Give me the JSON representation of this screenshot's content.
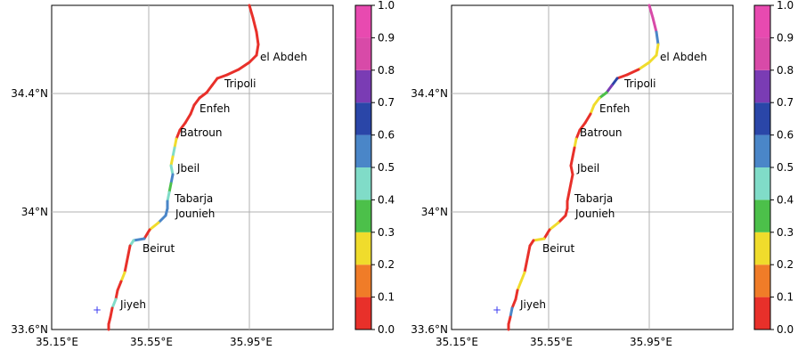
{
  "colorbar": {
    "colors": [
      "#e8302a",
      "#f07c28",
      "#f0dc2c",
      "#4cc04a",
      "#80dcc8",
      "#4a86c8",
      "#2a46a8",
      "#7a3cb4",
      "#d84aa8",
      "#e84ab0"
    ],
    "labels": [
      "0.0",
      "0.1",
      "0.2",
      "0.3",
      "0.4",
      "0.5",
      "0.6",
      "0.7",
      "0.8",
      "0.9",
      "1.0"
    ]
  },
  "axes": {
    "y_ticks": [
      "33.6°N",
      "34°N",
      "34.4°N"
    ],
    "x_ticks": [
      "35.15°E",
      "35.55°E",
      "35.95°E"
    ]
  },
  "places": [
    "el Abdeh",
    "Tripoli",
    "Enfeh",
    "Batroun",
    "Jbeil",
    "Tabarja",
    "Jounieh",
    "Beirut",
    "Jiyeh"
  ],
  "marker": "+",
  "panels": [
    {
      "name": "left",
      "segment_values": [
        0.0,
        0.0,
        0.0,
        0.0,
        0.0,
        0.0,
        0.0,
        0.0,
        0.0,
        0.0,
        0.0,
        0.0,
        0.0,
        0.0,
        0.0,
        0.0,
        0.25,
        0.45,
        0.25,
        0.45,
        0.55,
        0.35,
        0.45,
        0.55,
        0.55,
        0.5,
        0.25,
        0.0,
        0.55,
        0.45,
        0.0,
        0.0,
        0.0,
        0.25,
        0.0,
        0.0,
        0.45,
        0.0,
        0.0,
        0.0,
        0.0
      ]
    },
    {
      "name": "right",
      "segment_values": [
        0.85,
        0.85,
        0.55,
        0.25,
        0.25,
        0.25,
        0.0,
        0.0,
        0.65,
        0.75,
        0.35,
        0.25,
        0.25,
        0.0,
        0.0,
        0.0,
        0.25,
        0.0,
        0.0,
        0.0,
        0.0,
        0.0,
        0.0,
        0.0,
        0.0,
        0.0,
        0.25,
        0.0,
        0.25,
        0.0,
        0.0,
        0.0,
        0.0,
        0.25,
        0.25,
        0.0,
        0.0,
        0.55,
        0.0,
        0.0,
        0.0
      ]
    }
  ]
}
